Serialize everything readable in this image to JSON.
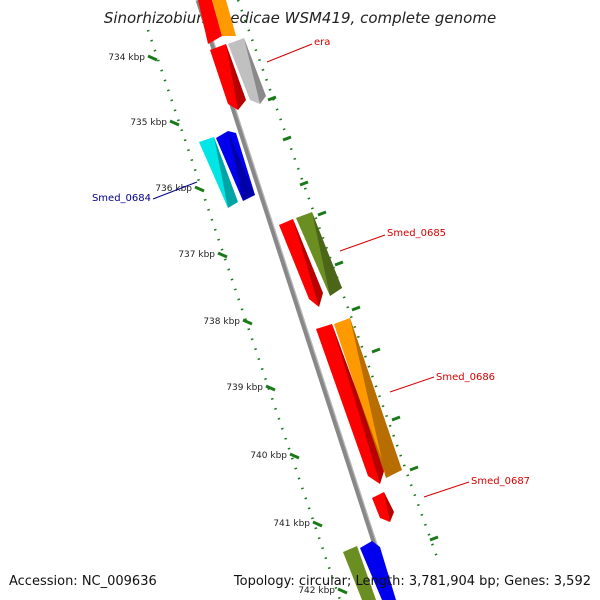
{
  "title": "Sinorhizobium medicae WSM419, complete genome",
  "footer": {
    "accession": "Accession: NC_009636",
    "summary": "Topology: circular; Length: 3,781,904 bp; Genes: 3,592"
  },
  "ticks": [
    {
      "label": "734 kbp"
    },
    {
      "label": "735 kbp"
    },
    {
      "label": "736 kbp"
    },
    {
      "label": "737 kbp"
    },
    {
      "label": "738 kbp"
    },
    {
      "label": "739 kbp"
    },
    {
      "label": "740 kbp"
    },
    {
      "label": "741 kbp"
    },
    {
      "label": "742 kbp"
    }
  ],
  "gene_labels": [
    {
      "name": "era",
      "color": "#d40000"
    },
    {
      "name": "Smed_0684",
      "color": "#00008b"
    },
    {
      "name": "Smed_0685",
      "color": "#d40000"
    },
    {
      "name": "Smed_0686",
      "color": "#d40000"
    },
    {
      "name": "Smed_0687",
      "color": "#d40000"
    }
  ],
  "colors": {
    "backbone": "#808080",
    "tick_marks": "#1a7a1a",
    "red_feature": "#ff0000",
    "orange_feature": "#ff9900",
    "grey_feature": "#c0c0c0",
    "cyan_feature": "#00e5e5",
    "blue_feature": "#0000ee",
    "olive_feature": "#6b8e23"
  }
}
